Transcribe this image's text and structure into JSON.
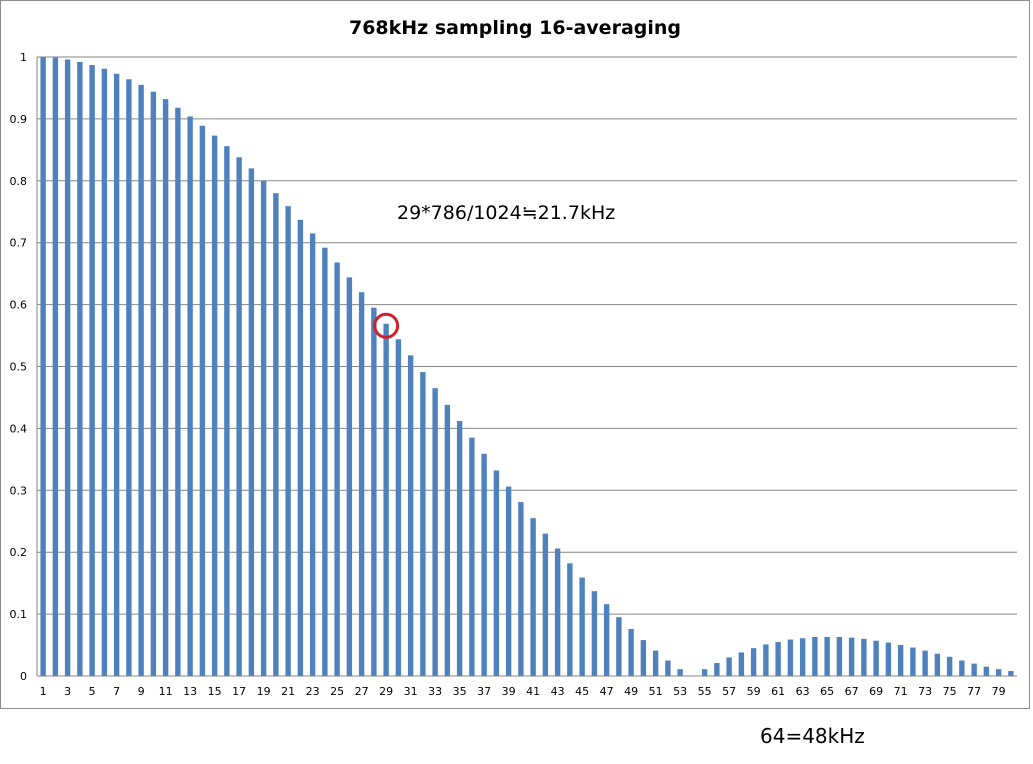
{
  "chart_data": {
    "type": "bar",
    "title": "768kHz sampling 16-averaging",
    "xlabel": "",
    "ylabel": "",
    "ylim": [
      0,
      1
    ],
    "yticks": [
      0,
      0.1,
      0.2,
      0.3,
      0.4,
      0.5,
      0.6,
      0.7,
      0.8,
      0.9,
      1
    ],
    "grid": true,
    "legend": "none",
    "bar_color": "#4f81bd",
    "gridline_color": "#868686",
    "categories": [
      1,
      2,
      3,
      4,
      5,
      6,
      7,
      8,
      9,
      10,
      11,
      12,
      13,
      14,
      15,
      16,
      17,
      18,
      19,
      20,
      21,
      22,
      23,
      24,
      25,
      26,
      27,
      28,
      29,
      30,
      31,
      32,
      33,
      34,
      35,
      36,
      37,
      38,
      39,
      40,
      41,
      42,
      43,
      44,
      45,
      46,
      47,
      48,
      49,
      50,
      51,
      52,
      53,
      54,
      55,
      56,
      57,
      58,
      59,
      60,
      61,
      62,
      63,
      64,
      65,
      66,
      67,
      68,
      69,
      70,
      71,
      72,
      73,
      74,
      75,
      76,
      77,
      78,
      79,
      80
    ],
    "xtick_labels": [
      1,
      3,
      5,
      7,
      9,
      11,
      13,
      15,
      17,
      19,
      21,
      23,
      25,
      27,
      29,
      31,
      33,
      35,
      37,
      39,
      41,
      43,
      45,
      47,
      49,
      51,
      53,
      55,
      57,
      59,
      61,
      63,
      65,
      67,
      69,
      71,
      73,
      75,
      77,
      79
    ],
    "values": [
      1.0,
      0.999,
      0.996,
      0.992,
      0.987,
      0.981,
      0.973,
      0.964,
      0.955,
      0.944,
      0.932,
      0.918,
      0.904,
      0.889,
      0.873,
      0.856,
      0.838,
      0.82,
      0.8,
      0.78,
      0.759,
      0.737,
      0.715,
      0.692,
      0.668,
      0.644,
      0.62,
      0.595,
      0.569,
      0.544,
      0.518,
      0.491,
      0.465,
      0.438,
      0.412,
      0.385,
      0.359,
      0.332,
      0.306,
      0.281,
      0.255,
      0.23,
      0.206,
      0.182,
      0.159,
      0.137,
      0.116,
      0.095,
      0.076,
      0.058,
      0.041,
      0.025,
      0.011,
      0.0,
      0.011,
      0.021,
      0.03,
      0.038,
      0.045,
      0.051,
      0.055,
      0.059,
      0.061,
      0.063,
      0.063,
      0.063,
      0.062,
      0.06,
      0.057,
      0.054,
      0.05,
      0.046,
      0.041,
      0.036,
      0.031,
      0.025,
      0.02,
      0.015,
      0.011,
      0.008
    ],
    "annotations": [
      {
        "text": "29*786/1024≒21.7kHz",
        "target_category": 29
      }
    ]
  },
  "footer_note": "64=48kHz",
  "highlight_color": "#d0202a"
}
